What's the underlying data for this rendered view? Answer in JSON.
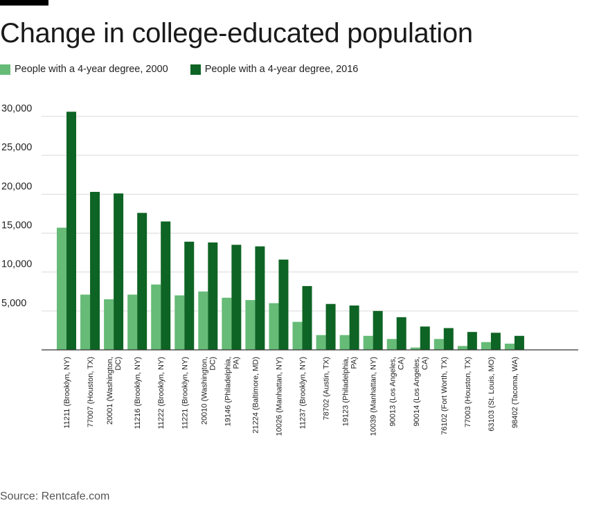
{
  "chart_data": {
    "type": "bar",
    "title": "Change in college-educated population",
    "source": "Source: Rentcafe.com",
    "categories": [
      [
        "11211 (Brooklyn, NY)"
      ],
      [
        "77007 (Houston, TX)"
      ],
      [
        "20001 (Washington,",
        "DC)"
      ],
      [
        "11216 (Brooklyn, NY)"
      ],
      [
        "11222 (Brooklyn, NY)"
      ],
      [
        "11221 (Brooklyn, NY)"
      ],
      [
        "20010 (Washington,",
        "DC)"
      ],
      [
        "19146 (Philadelphia,",
        "PA)"
      ],
      [
        "21224 (Baltimore, MD)"
      ],
      [
        "10026 (Manhattan, NY)"
      ],
      [
        "11237 (Brooklyn, NY)"
      ],
      [
        "78702 (Austin, TX)"
      ],
      [
        "19123 (Philadelphia,",
        "PA)"
      ],
      [
        "10039 (Manhattan, NY)"
      ],
      [
        "90013 (Los Angeles,",
        "CA)"
      ],
      [
        "90014 (Los Angeles,",
        "CA)"
      ],
      [
        "76102 (Fort Worth, TX)"
      ],
      [
        "77003 (Houston, TX)"
      ],
      [
        "63103 (St. Louis, MO)"
      ],
      [
        "98402 (Tacoma, WA)"
      ]
    ],
    "series": [
      {
        "name": "People with a 4-year degree, 2000",
        "color": "#66bb77",
        "values": [
          15700,
          7100,
          6500,
          7100,
          8400,
          7000,
          7500,
          6700,
          6400,
          6000,
          3600,
          1900,
          1900,
          1800,
          1400,
          300,
          1400,
          500,
          1000,
          800
        ]
      },
      {
        "name": "People with a 4-year degree, 2016",
        "color": "#0e6424",
        "values": [
          30600,
          20300,
          20100,
          17600,
          16500,
          13900,
          13800,
          13500,
          13300,
          11600,
          8200,
          5900,
          5700,
          5000,
          4200,
          3000,
          2800,
          2300,
          2200,
          1800
        ]
      }
    ],
    "yticks": [
      "30,000",
      "25,000",
      "20,000",
      "15,000",
      "10,000",
      "5,000"
    ],
    "ytick_values": [
      30000,
      25000,
      20000,
      15000,
      10000,
      5000
    ],
    "ylim": [
      0,
      30000
    ],
    "grid": true,
    "legend_position": "top-left"
  }
}
